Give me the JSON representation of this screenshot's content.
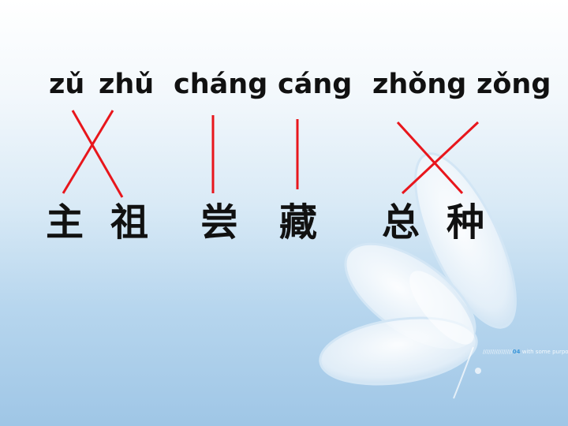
{
  "pinyin": [
    "zǔ",
    "zhǔ",
    "cháng",
    "cáng",
    "zhǒng",
    "zǒng"
  ],
  "hanzi": [
    "主",
    "祖",
    "尝",
    "藏",
    "总",
    "种"
  ],
  "watermark": {
    "prefix": "////////////////",
    "accent": "04",
    "text": "with some purpose"
  },
  "colors": {
    "connector": "#e8161c",
    "text": "#111111"
  }
}
